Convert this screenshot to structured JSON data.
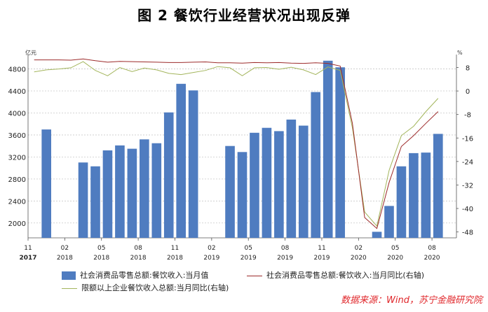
{
  "title": "图 2  餐饮行业经营状况出现反弹",
  "source": "数据来源：Wind，苏宁金融研究院",
  "colors": {
    "bar": "#4f7cc0",
    "line1": "#9c2a2a",
    "line2": "#a3b55c"
  },
  "chart_data": {
    "type": "bar",
    "left_unit": "亿元",
    "right_unit": "%",
    "left_ticks": [
      2000,
      2400,
      2800,
      3200,
      3600,
      4000,
      4400,
      4800
    ],
    "right_ticks": [
      8,
      0,
      -8,
      -16,
      -24,
      -32,
      -40,
      -48
    ],
    "ylim_left": [
      1730,
      4960
    ],
    "ylim_right": [
      -50,
      10.5
    ],
    "x_ticks": [
      {
        "i": 0,
        "m": "11",
        "y": "2017"
      },
      {
        "i": 3,
        "m": "02",
        "y": "2018"
      },
      {
        "i": 6,
        "m": "05",
        "y": "2018"
      },
      {
        "i": 9,
        "m": "08",
        "y": "2018"
      },
      {
        "i": 12,
        "m": "11",
        "y": "2018"
      },
      {
        "i": 15,
        "m": "02",
        "y": "2019"
      },
      {
        "i": 18,
        "m": "05",
        "y": "2019"
      },
      {
        "i": 21,
        "m": "08",
        "y": "2019"
      },
      {
        "i": 24,
        "m": "11",
        "y": "2019"
      },
      {
        "i": 27,
        "m": "02",
        "y": "2020"
      },
      {
        "i": 30,
        "m": "05",
        "y": "2020"
      },
      {
        "i": 33,
        "m": "08",
        "y": "2020"
      }
    ],
    "legend": {
      "bar": "社会消费品零售总额:餐饮收入:当月值",
      "line1": "社会消费品零售总额:餐饮收入:当月同比(右轴)",
      "line2": "限额以上企业餐饮收入总额:当月同比(右轴)"
    },
    "bars": [
      {
        "i": 1,
        "v": 3700
      },
      {
        "i": 4,
        "v": 3100
      },
      {
        "i": 5,
        "v": 3030
      },
      {
        "i": 6,
        "v": 3320
      },
      {
        "i": 7,
        "v": 3410
      },
      {
        "i": 8,
        "v": 3350
      },
      {
        "i": 9,
        "v": 3520
      },
      {
        "i": 10,
        "v": 3450
      },
      {
        "i": 11,
        "v": 4010
      },
      {
        "i": 12,
        "v": 4530
      },
      {
        "i": 13,
        "v": 4410
      },
      {
        "i": 16,
        "v": 3400
      },
      {
        "i": 17,
        "v": 3290
      },
      {
        "i": 18,
        "v": 3640
      },
      {
        "i": 19,
        "v": 3730
      },
      {
        "i": 20,
        "v": 3670
      },
      {
        "i": 21,
        "v": 3880
      },
      {
        "i": 22,
        "v": 3770
      },
      {
        "i": 23,
        "v": 4380
      },
      {
        "i": 24,
        "v": 4950
      },
      {
        "i": 25,
        "v": 4830
      },
      {
        "i": 28,
        "v": 1840
      },
      {
        "i": 29,
        "v": 2310
      },
      {
        "i": 30,
        "v": 3030
      },
      {
        "i": 31,
        "v": 3270
      },
      {
        "i": 32,
        "v": 3280
      },
      {
        "i": 33,
        "v": 3620
      }
    ],
    "line1": [
      {
        "x": 0.5,
        "v": 10.6
      },
      {
        "x": 1.5,
        "v": 10.6
      },
      {
        "x": 2.5,
        "v": 10.6
      },
      {
        "x": 3.5,
        "v": 10.5
      },
      {
        "x": 4.5,
        "v": 10.9
      },
      {
        "x": 5.5,
        "v": 10.3
      },
      {
        "x": 6.5,
        "v": 9.8
      },
      {
        "x": 7.5,
        "v": 10.1
      },
      {
        "x": 8.5,
        "v": 10.0
      },
      {
        "x": 9.5,
        "v": 9.9
      },
      {
        "x": 10.5,
        "v": 9.8
      },
      {
        "x": 11.5,
        "v": 9.7
      },
      {
        "x": 12.5,
        "v": 9.7
      },
      {
        "x": 13.5,
        "v": 9.8
      },
      {
        "x": 14.5,
        "v": 9.9
      },
      {
        "x": 15.5,
        "v": 9.6
      },
      {
        "x": 16.5,
        "v": 9.6
      },
      {
        "x": 17.5,
        "v": 9.5
      },
      {
        "x": 18.5,
        "v": 9.7
      },
      {
        "x": 19.5,
        "v": 9.6
      },
      {
        "x": 20.5,
        "v": 9.7
      },
      {
        "x": 21.5,
        "v": 9.5
      },
      {
        "x": 22.5,
        "v": 9.4
      },
      {
        "x": 23.5,
        "v": 9.6
      },
      {
        "x": 24.5,
        "v": 9.4
      },
      {
        "x": 25.5,
        "v": 8.5
      },
      {
        "x": 26.5,
        "v": -11.0
      },
      {
        "x": 27.5,
        "v": -43.1
      },
      {
        "x": 28.5,
        "v": -46.8
      },
      {
        "x": 29.5,
        "v": -31.1
      },
      {
        "x": 30.5,
        "v": -18.9
      },
      {
        "x": 31.5,
        "v": -15.2
      },
      {
        "x": 32.5,
        "v": -11.0
      },
      {
        "x": 33.5,
        "v": -7.0
      }
    ],
    "line2": [
      {
        "x": 0.5,
        "v": 6.5
      },
      {
        "x": 1.5,
        "v": 7.2
      },
      {
        "x": 2.5,
        "v": 7.5
      },
      {
        "x": 3.5,
        "v": 7.9
      },
      {
        "x": 4.5,
        "v": 10.0
      },
      {
        "x": 5.5,
        "v": 7.0
      },
      {
        "x": 6.5,
        "v": 5.2
      },
      {
        "x": 7.5,
        "v": 8.0
      },
      {
        "x": 8.5,
        "v": 6.6
      },
      {
        "x": 9.5,
        "v": 7.8
      },
      {
        "x": 10.5,
        "v": 7.2
      },
      {
        "x": 11.5,
        "v": 6.0
      },
      {
        "x": 12.5,
        "v": 5.6
      },
      {
        "x": 13.5,
        "v": 6.3
      },
      {
        "x": 14.5,
        "v": 7.0
      },
      {
        "x": 15.5,
        "v": 8.3
      },
      {
        "x": 16.5,
        "v": 7.9
      },
      {
        "x": 17.5,
        "v": 5.2
      },
      {
        "x": 18.5,
        "v": 7.9
      },
      {
        "x": 19.5,
        "v": 8.0
      },
      {
        "x": 20.5,
        "v": 7.4
      },
      {
        "x": 21.5,
        "v": 8.1
      },
      {
        "x": 22.5,
        "v": 7.2
      },
      {
        "x": 23.5,
        "v": 5.6
      },
      {
        "x": 24.5,
        "v": 8.2
      },
      {
        "x": 25.5,
        "v": 7.0
      },
      {
        "x": 26.5,
        "v": -12.5
      },
      {
        "x": 27.5,
        "v": -41.2
      },
      {
        "x": 28.5,
        "v": -46.0
      },
      {
        "x": 29.5,
        "v": -27.0
      },
      {
        "x": 30.5,
        "v": -15.2
      },
      {
        "x": 31.5,
        "v": -12.0
      },
      {
        "x": 32.5,
        "v": -7.0
      },
      {
        "x": 33.5,
        "v": -2.5
      }
    ]
  }
}
